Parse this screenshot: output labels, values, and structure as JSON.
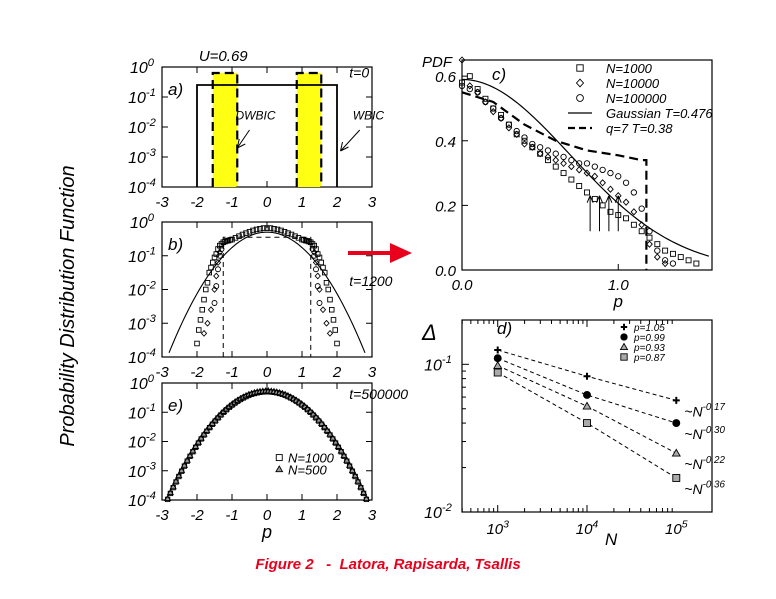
{
  "figure": {
    "y_axis_label": "Probability Distribution Function",
    "caption": "Figure 2   -  Latora, Rapisarda, Tsallis",
    "arrow_color": "#e8001c",
    "highlight_color": "#ffff14"
  },
  "chart_data": [
    {
      "id": "a",
      "type": "line",
      "panel_label": "a)",
      "annotations": [
        "U=0.69",
        "t=0",
        "DWBIC",
        "WBIC"
      ],
      "x_ticks": [
        "-3",
        "-2",
        "-1",
        "0",
        "1",
        "2",
        "3"
      ],
      "y_ticks": [
        "10",
        "10",
        "10",
        "10",
        "10"
      ],
      "y_tick_exps": [
        "0",
        "-1",
        "-2",
        "-3",
        "-4"
      ],
      "xlim": [
        -3,
        3
      ],
      "ylim": [
        -4,
        0
      ],
      "yscale": "log",
      "series": [
        {
          "style": "solid",
          "x": [
            -2,
            -2,
            2,
            2
          ],
          "y": [
            -4,
            -0.6,
            -0.6,
            -4
          ]
        },
        {
          "style": "dashed",
          "x": [
            -1.55,
            -1.55,
            -0.85,
            -0.85
          ],
          "y": [
            -4,
            -0.2,
            -0.2,
            -4
          ]
        },
        {
          "style": "dashed",
          "x": [
            0.85,
            0.85,
            1.55,
            1.55
          ],
          "y": [
            -4,
            -0.2,
            -0.2,
            -4
          ]
        }
      ],
      "filled_regions": [
        [
          -1.55,
          -0.85
        ],
        [
          0.85,
          1.55
        ]
      ]
    },
    {
      "id": "b",
      "type": "scatter",
      "panel_label": "b)",
      "annotations": [
        "t=1200"
      ],
      "x_ticks": [
        "-3",
        "-2",
        "-1",
        "0",
        "1",
        "2",
        "3"
      ],
      "y_ticks": [
        "10",
        "10",
        "10",
        "10",
        "10"
      ],
      "y_tick_exps": [
        "0",
        "-1",
        "-2",
        "-3",
        "-4"
      ],
      "xlim": [
        -3,
        3
      ],
      "ylim": [
        -4,
        0
      ],
      "yscale": "log",
      "gaussian_T": 0.476,
      "gaussian_amplitude": -0.3,
      "dashed_box": {
        "x": [
          -1.25,
          1.25
        ],
        "y_top": -0.45
      },
      "squares": {
        "x": [
          -2.0,
          -1.95,
          -1.9,
          -1.85,
          -1.8,
          -1.75,
          -1.7,
          -1.65,
          -1.6,
          -1.55,
          -1.5,
          -1.45,
          -1.4,
          -1.35,
          -1.3,
          -1.25,
          -1.2,
          -1.15,
          -1.1,
          -1.05,
          -1.0,
          -0.9,
          -0.8,
          -0.7,
          -0.6,
          -0.5,
          -0.4,
          -0.3,
          -0.2,
          -0.1,
          0.0,
          0.1,
          0.2,
          0.3,
          0.4,
          0.5,
          0.6,
          0.7,
          0.8,
          0.9,
          1.0,
          1.05,
          1.1,
          1.15,
          1.2,
          1.25,
          1.3,
          1.35,
          1.4,
          1.45,
          1.5,
          1.55,
          1.6,
          1.65,
          1.7,
          1.75,
          1.8,
          1.85,
          1.9,
          1.95,
          2.0
        ],
        "y": [
          -3.6,
          -3.2,
          -2.9,
          -2.6,
          -2.3,
          -2.0,
          -1.8,
          -1.5,
          -1.35,
          -1.2,
          -1.05,
          -0.95,
          -0.8,
          -0.7,
          -0.65,
          -0.6,
          -0.58,
          -0.56,
          -0.55,
          -0.53,
          -0.52,
          -0.47,
          -0.42,
          -0.37,
          -0.33,
          -0.29,
          -0.25,
          -0.22,
          -0.2,
          -0.18,
          -0.18,
          -0.18,
          -0.2,
          -0.22,
          -0.25,
          -0.29,
          -0.33,
          -0.37,
          -0.42,
          -0.47,
          -0.52,
          -0.53,
          -0.55,
          -0.56,
          -0.58,
          -0.6,
          -0.65,
          -0.7,
          -0.8,
          -0.95,
          -1.05,
          -1.2,
          -1.35,
          -1.5,
          -1.8,
          -2.0,
          -2.3,
          -2.6,
          -2.9,
          -3.2,
          -3.6
        ]
      },
      "diamonds": {
        "x": [
          -1.8,
          -1.7,
          -1.6,
          -1.5,
          -1.45,
          -1.4,
          -1.35,
          1.35,
          1.4,
          1.45,
          1.5,
          1.6,
          1.7,
          1.8
        ],
        "y": [
          -3.3,
          -3.0,
          -2.6,
          -2.0,
          -1.6,
          -1.2,
          -0.9,
          -0.9,
          -1.2,
          -1.6,
          -2.0,
          -2.6,
          -3.0,
          -3.3
        ]
      },
      "circles": {
        "x": [
          -1.5,
          -1.45,
          -1.4,
          -1.35,
          -1.3,
          1.3,
          1.35,
          1.4,
          1.45,
          1.5
        ],
        "y": [
          -2.4,
          -1.9,
          -1.4,
          -1.0,
          -0.8,
          -0.8,
          -1.0,
          -1.4,
          -1.9,
          -2.4
        ]
      }
    },
    {
      "id": "e",
      "type": "scatter",
      "panel_label": "e)",
      "annotations": [
        "t=500000"
      ],
      "x_ticks": [
        "-3",
        "-2",
        "-1",
        "0",
        "1",
        "2",
        "3"
      ],
      "y_ticks": [
        "10",
        "10",
        "10",
        "10",
        "10"
      ],
      "y_tick_exps": [
        "0",
        "-1",
        "-2",
        "-3",
        "-4"
      ],
      "xlabel": "p",
      "xlim": [
        -3,
        3
      ],
      "ylim": [
        -4,
        0
      ],
      "yscale": "log",
      "gaussian_T": 0.476,
      "gaussian_amplitude": -0.3,
      "legend": [
        "N=1000",
        "N=500"
      ]
    },
    {
      "id": "c",
      "type": "scatter",
      "panel_label": "c)",
      "ylabel": "PDF",
      "xlabel": "p",
      "x_ticks": [
        "0.0",
        "1.0"
      ],
      "x_tick_values": [
        0.0,
        1.0
      ],
      "y_ticks": [
        "0.0",
        "0.2",
        "0.4",
        "0.6"
      ],
      "y_tick_values": [
        0.0,
        0.2,
        0.4,
        0.6
      ],
      "xlim": [
        0,
        1.6
      ],
      "ylim": [
        0,
        0.65
      ],
      "legend": [
        "N=1000",
        "N=10000",
        "N=100000",
        "Gaussian T=0.476",
        "q=7  T=0.38"
      ],
      "gaussian_T": 0.476,
      "q_curve": {
        "x": [
          0.0,
          0.2,
          0.4,
          0.6,
          0.8,
          1.0,
          1.15,
          1.18,
          1.18
        ],
        "y": [
          0.55,
          0.52,
          0.45,
          0.4,
          0.37,
          0.355,
          0.34,
          0.34,
          0.0
        ]
      },
      "squares": {
        "x": [
          0.0,
          0.05,
          0.1,
          0.15,
          0.2,
          0.25,
          0.3,
          0.35,
          0.4,
          0.45,
          0.5,
          0.55,
          0.6,
          0.65,
          0.7,
          0.75,
          0.8,
          0.85,
          0.9,
          0.95,
          1.0,
          1.05,
          1.1,
          1.15,
          1.2,
          1.25,
          1.3,
          1.35,
          1.4,
          1.45,
          1.5
        ],
        "y": [
          0.58,
          0.6,
          0.56,
          0.53,
          0.5,
          0.48,
          0.45,
          0.42,
          0.4,
          0.38,
          0.36,
          0.34,
          0.32,
          0.3,
          0.28,
          0.26,
          0.24,
          0.22,
          0.2,
          0.18,
          0.17,
          0.16,
          0.14,
          0.12,
          0.1,
          0.08,
          0.06,
          0.05,
          0.04,
          0.03,
          0.02
        ]
      },
      "diamonds": {
        "x": [
          0.0,
          0.05,
          0.1,
          0.15,
          0.2,
          0.25,
          0.3,
          0.35,
          0.4,
          0.45,
          0.5,
          0.55,
          0.6,
          0.65,
          0.7,
          0.75,
          0.8,
          0.85,
          0.9,
          0.95,
          1.0,
          1.05,
          1.1,
          1.15,
          1.2,
          1.25,
          1.3
        ],
        "y": [
          0.65,
          0.57,
          0.55,
          0.52,
          0.49,
          0.47,
          0.44,
          0.42,
          0.39,
          0.38,
          0.36,
          0.35,
          0.34,
          0.33,
          0.32,
          0.31,
          0.3,
          0.29,
          0.27,
          0.25,
          0.23,
          0.21,
          0.18,
          0.14,
          0.08,
          0.04,
          0.02
        ]
      },
      "circles": {
        "x": [
          0.0,
          0.05,
          0.1,
          0.15,
          0.2,
          0.25,
          0.3,
          0.35,
          0.4,
          0.45,
          0.5,
          0.55,
          0.6,
          0.65,
          0.7,
          0.75,
          0.8,
          0.85,
          0.9,
          0.95,
          1.0,
          1.05,
          1.1,
          1.15,
          1.2,
          1.25,
          1.3,
          1.35
        ],
        "y": [
          0.57,
          0.56,
          0.55,
          0.52,
          0.5,
          0.47,
          0.45,
          0.43,
          0.41,
          0.39,
          0.38,
          0.37,
          0.36,
          0.35,
          0.34,
          0.33,
          0.33,
          0.32,
          0.31,
          0.3,
          0.29,
          0.27,
          0.24,
          0.19,
          0.12,
          0.06,
          0.03,
          0.02
        ]
      },
      "arrows_x": [
        0.82,
        0.88,
        0.94,
        1.0
      ]
    },
    {
      "id": "d",
      "type": "scatter",
      "panel_label": "d)",
      "ylabel": "Δ",
      "xlabel": "N",
      "xscale": "log",
      "yscale": "log",
      "xlim": [
        2.6,
        5.4
      ],
      "ylim": [
        -2,
        -0.7
      ],
      "x_ticks": [
        "10",
        "10",
        "10"
      ],
      "x_tick_exps": [
        "3",
        "4",
        "5"
      ],
      "x_tick_values": [
        3,
        4,
        5
      ],
      "y_ticks": [
        "10",
        "10"
      ],
      "y_tick_exps": [
        "-1",
        "-2"
      ],
      "y_tick_values": [
        -1,
        -2
      ],
      "x": [
        1000,
        10000,
        100000
      ],
      "series": [
        {
          "name": "p=1.05",
          "marker": "plus",
          "values": [
            0.125,
            0.083,
            0.057
          ],
          "fit": "~N",
          "fit_exp": "-0.17"
        },
        {
          "name": "p=0.99",
          "marker": "circle",
          "values": [
            0.11,
            0.062,
            0.04
          ],
          "fit": "~N",
          "fit_exp": "-0.30"
        },
        {
          "name": "p=0.93",
          "marker": "triangle",
          "values": [
            0.098,
            0.052,
            0.025
          ],
          "fit": "~N",
          "fit_exp": "-0.22"
        },
        {
          "name": "p=0.87",
          "marker": "square",
          "values": [
            0.088,
            0.04,
            0.017
          ],
          "fit": "~N",
          "fit_exp": "-0.36"
        }
      ]
    }
  ]
}
